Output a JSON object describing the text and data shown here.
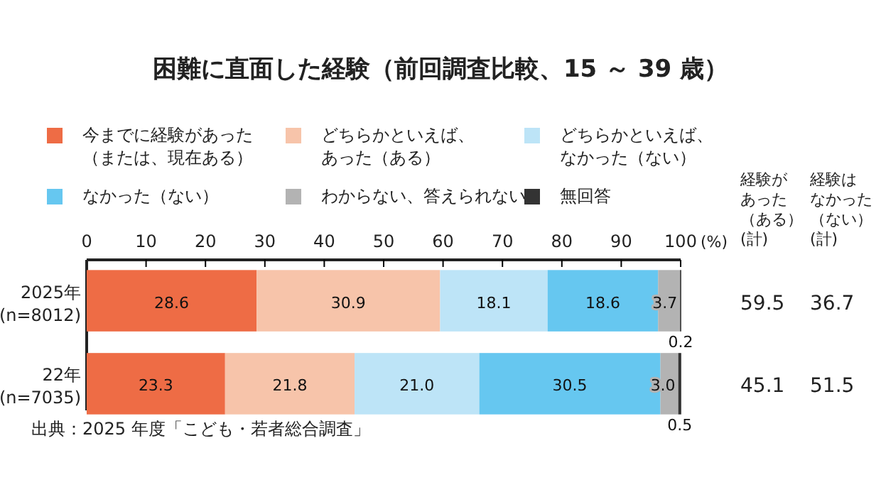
{
  "chart_data": {
    "type": "bar",
    "orientation": "horizontal",
    "stacked": true,
    "title": "困難に直面した経験（前回調査比較、15 ～ 39 歳）",
    "xlabel": "(%)",
    "categories": [
      "2025年\n(n=8012)",
      "22年\n(n=7035)"
    ],
    "series": [
      {
        "name": "今までに経験があった（または、現在ある）",
        "color": "#ee6c45",
        "values": [
          28.6,
          23.3
        ],
        "value_labels": [
          "28.6",
          "23.3"
        ]
      },
      {
        "name": "どちらかといえば、あった（ある）",
        "color": "#f7c4aa",
        "values": [
          30.9,
          21.8
        ],
        "value_labels": [
          "30.9",
          "21.8"
        ]
      },
      {
        "name": "どちらかといえば、なかった（ない）",
        "color": "#bde4f7",
        "values": [
          18.1,
          21.0
        ],
        "value_labels": [
          "18.1",
          "21.0"
        ]
      },
      {
        "name": "なかった（ない）",
        "color": "#66c7f0",
        "values": [
          18.6,
          30.5
        ],
        "value_labels": [
          "18.6",
          "30.5"
        ]
      },
      {
        "name": "わからない、答えられない",
        "color": "#b3b3b3",
        "values": [
          3.7,
          3.0
        ],
        "value_labels": [
          "3.7",
          "3.0"
        ]
      },
      {
        "name": "無回答",
        "color": "#333333",
        "values": [
          0.2,
          0.5
        ],
        "value_labels": [
          "0.2",
          "0.5"
        ]
      }
    ],
    "xlim": [
      0,
      100
    ],
    "xticks": [
      0,
      10,
      20,
      30,
      40,
      50,
      60,
      70,
      80,
      90,
      100
    ],
    "grid": false,
    "legend": "top",
    "annotations": [
      "出典：2025 年度「こども・若者総合調査」",
      "経験があった（ある）(計)",
      "経験はなかった（ない）(計)",
      "59.5",
      "36.7",
      "45.1",
      "51.5"
    ]
  }
}
